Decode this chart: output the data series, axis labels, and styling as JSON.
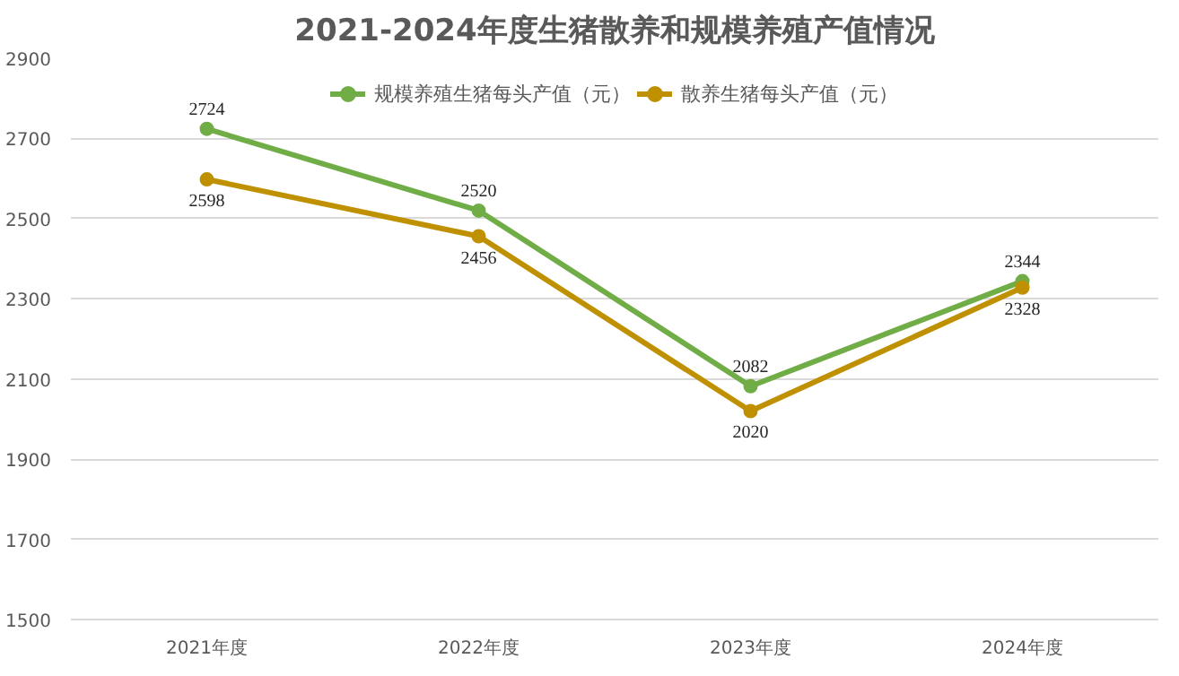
{
  "chart_data": {
    "type": "line",
    "title": "2021-2024年度生猪散养和规模养殖产值情况",
    "categories": [
      "2021年度",
      "2022年度",
      "2023年度",
      "2024年度"
    ],
    "series": [
      {
        "name": "规模养殖生猪每头产值（元）",
        "color": "#70ad47",
        "values": [
          2724,
          2520,
          2082,
          2344
        ]
      },
      {
        "name": "散养生猪每头产值（元）",
        "color": "#bf9000",
        "values": [
          2598,
          2456,
          2020,
          2328
        ]
      }
    ],
    "ylim": [
      1500,
      2900
    ],
    "yticks": [
      1500,
      1700,
      1900,
      2100,
      2300,
      2500,
      2700,
      2900
    ],
    "grid": "y",
    "legend": "top",
    "marker": "circle",
    "line_style": "solid",
    "data_labels": true
  }
}
